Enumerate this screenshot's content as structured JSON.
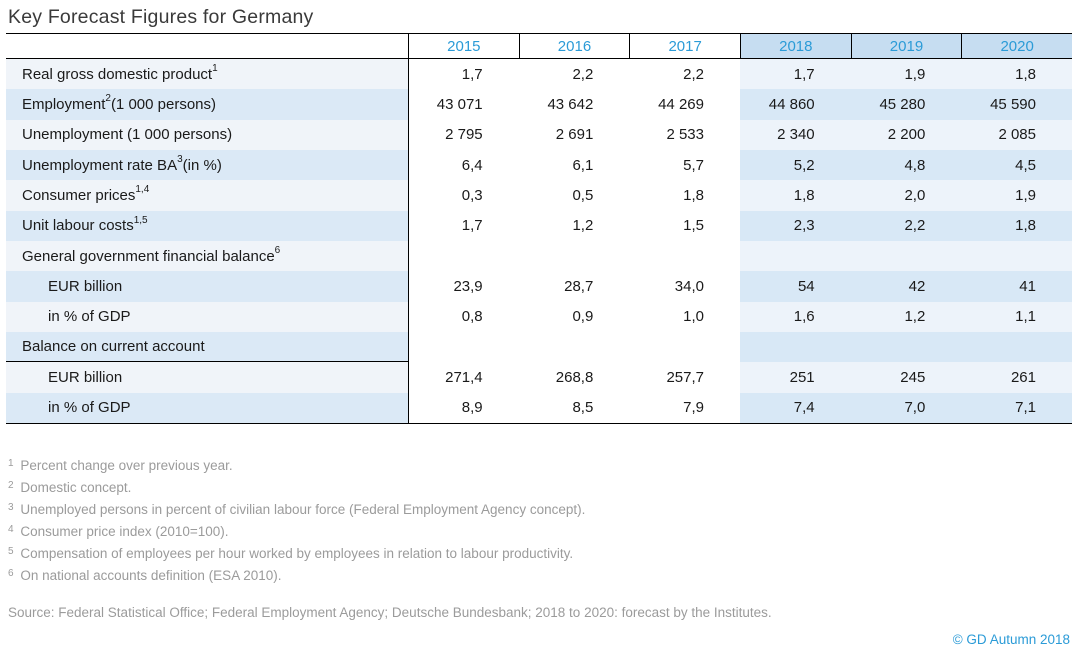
{
  "title": "Key Forecast Figures for Germany",
  "chart_data": {
    "type": "table",
    "title": "Key Forecast Figures for Germany",
    "columns": [
      "2015",
      "2016",
      "2017",
      "2018",
      "2019",
      "2020"
    ],
    "forecast_start_index": 3,
    "forecast_columns": [
      "2018",
      "2019",
      "2020"
    ],
    "rows": [
      {
        "label": "Real gross domestic product",
        "sup": "1",
        "suffix": "",
        "indent": false,
        "shade": "light",
        "rule_below": false,
        "values": [
          "1,7",
          "2,2",
          "2,2",
          "1,7",
          "1,9",
          "1,8"
        ]
      },
      {
        "label": "Employment",
        "sup": "2",
        "suffix": " (1 000 persons)",
        "indent": false,
        "shade": "dark",
        "rule_below": false,
        "values": [
          "43 071",
          "43 642",
          "44 269",
          "44 860",
          "45 280",
          "45 590"
        ]
      },
      {
        "label": "Unemployment (1 000 persons)",
        "sup": "",
        "suffix": "",
        "indent": false,
        "shade": "light",
        "rule_below": false,
        "values": [
          "2 795",
          "2 691",
          "2 533",
          "2 340",
          "2 200",
          "2 085"
        ]
      },
      {
        "label": "Unemployment rate BA",
        "sup": "3",
        "suffix": " (in %)",
        "indent": false,
        "shade": "dark",
        "rule_below": false,
        "values": [
          "6,4",
          "6,1",
          "5,7",
          "5,2",
          "4,8",
          "4,5"
        ]
      },
      {
        "label": "Consumer prices",
        "sup": "1,4",
        "suffix": "",
        "indent": false,
        "shade": "light",
        "rule_below": false,
        "values": [
          "0,3",
          "0,5",
          "1,8",
          "1,8",
          "2,0",
          "1,9"
        ]
      },
      {
        "label": "Unit labour costs",
        "sup": "1,5",
        "suffix": "",
        "indent": false,
        "shade": "dark",
        "rule_below": false,
        "values": [
          "1,7",
          "1,2",
          "1,5",
          "2,3",
          "2,2",
          "1,8"
        ]
      },
      {
        "label": "General government financial balance",
        "sup": "6",
        "suffix": "",
        "indent": false,
        "shade": "light",
        "rule_below": false,
        "values": [
          "",
          "",
          "",
          "",
          "",
          ""
        ]
      },
      {
        "label": "EUR billion",
        "sup": "",
        "suffix": "",
        "indent": true,
        "shade": "dark",
        "rule_below": false,
        "values": [
          "23,9",
          "28,7",
          "34,0",
          "54",
          "42",
          "41"
        ]
      },
      {
        "label": "in % of GDP",
        "sup": "",
        "suffix": "",
        "indent": true,
        "shade": "light",
        "rule_below": false,
        "values": [
          "0,8",
          "0,9",
          "1,0",
          "1,6",
          "1,2",
          "1,1"
        ]
      },
      {
        "label": "Balance on current account",
        "sup": "",
        "suffix": "",
        "indent": false,
        "shade": "dark",
        "rule_below": true,
        "values": [
          "",
          "",
          "",
          "",
          "",
          ""
        ]
      },
      {
        "label": "EUR billion",
        "sup": "",
        "suffix": "",
        "indent": true,
        "shade": "light",
        "rule_below": false,
        "values": [
          "271,4",
          "268,8",
          "257,7",
          "251",
          "245",
          "261"
        ]
      },
      {
        "label": "in % of GDP",
        "sup": "",
        "suffix": "",
        "indent": true,
        "shade": "dark",
        "rule_below": false,
        "values": [
          "8,9",
          "8,5",
          "7,9",
          "7,4",
          "7,0",
          "7,1"
        ]
      }
    ]
  },
  "footnotes": [
    {
      "marker": "1",
      "text": "Percent change over previous year."
    },
    {
      "marker": "2",
      "text": "Domestic concept."
    },
    {
      "marker": "3",
      "text": "Unemployed persons in percent of civilian labour force (Federal Employment Agency concept)."
    },
    {
      "marker": "4",
      "text": "Consumer price index (2010=100)."
    },
    {
      "marker": "5",
      "text": "Compensation of employees per hour worked by employees in relation to labour productivity."
    },
    {
      "marker": "6",
      "text": "On national accounts definition (ESA 2010)."
    }
  ],
  "source": "Source: Federal Statistical Office; Federal Employment Agency; Deutsche Bundesbank; 2018 to 2020: forecast by the Institutes.",
  "copyright": "© GD Autumn 2018",
  "colors": {
    "blue": "#2b9bd7",
    "title_color": "#3a3a3a",
    "text_color": "#1a1a1a",
    "gray": "#9b9b9b",
    "label_light": "#f0f4f9",
    "label_dark": "#dbe9f6",
    "fc_light": "#edf3fa",
    "fc_dark": "#d8e8f6",
    "fc_head": "#c6ddf1"
  }
}
